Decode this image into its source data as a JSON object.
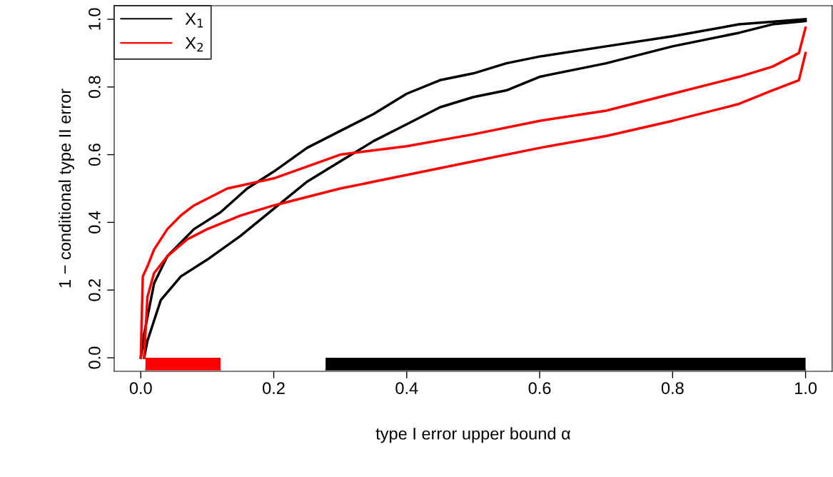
{
  "chart_data": {
    "type": "line",
    "xlabel": "type I error upper bound α",
    "ylabel": "1 − conditional type II error",
    "xlim": [
      -0.04,
      1.04
    ],
    "ylim": [
      -0.04,
      1.04
    ],
    "xticks": [
      {
        "value": 0,
        "label": "0.0"
      },
      0.2,
      0.4,
      0.6,
      0.8,
      {
        "value": 1,
        "label": "1.0"
      }
    ],
    "yticks": [
      {
        "value": 0,
        "label": "0.0"
      },
      0.2,
      0.4,
      0.6,
      0.8,
      {
        "value": 1,
        "label": "1.0"
      }
    ],
    "grid": false,
    "legend": "top left",
    "line_style": "solid",
    "marker": "none",
    "series": [
      {
        "name": "X$_{1}$",
        "color": "#000000",
        "x": [
          0,
          0.005,
          0.02,
          0.04,
          0.08,
          0.12,
          0.16,
          0.2,
          0.25,
          0.3,
          0.35,
          0.4,
          0.45,
          0.5,
          0.55,
          0.6,
          0.7,
          0.8,
          0.9,
          1.0
        ],
        "values": [
          0,
          0.07,
          0.22,
          0.3,
          0.38,
          0.43,
          0.5,
          0.55,
          0.62,
          0.67,
          0.72,
          0.78,
          0.82,
          0.84,
          0.87,
          0.89,
          0.92,
          0.95,
          0.985,
          1.0
        ]
      },
      {
        "color": "#000000",
        "x": [
          0.005,
          0.01,
          0.03,
          0.06,
          0.1,
          0.15,
          0.2,
          0.25,
          0.3,
          0.35,
          0.4,
          0.45,
          0.5,
          0.55,
          0.6,
          0.7,
          0.8,
          0.9,
          0.95,
          1.0
        ],
        "values": [
          0,
          0.05,
          0.17,
          0.24,
          0.29,
          0.36,
          0.44,
          0.52,
          0.58,
          0.64,
          0.69,
          0.74,
          0.77,
          0.79,
          0.83,
          0.87,
          0.92,
          0.96,
          0.985,
          0.995
        ]
      },
      {
        "name": "X$_{2}$",
        "color": "#ff0000",
        "x": [
          0,
          0.003,
          0.01,
          0.02,
          0.04,
          0.06,
          0.08,
          0.1,
          0.13,
          0.2,
          0.3,
          0.4,
          0.5,
          0.6,
          0.7,
          0.8,
          0.9,
          0.95,
          0.99,
          1.0
        ],
        "values": [
          0,
          0.24,
          0.27,
          0.32,
          0.38,
          0.42,
          0.45,
          0.47,
          0.5,
          0.53,
          0.6,
          0.625,
          0.66,
          0.7,
          0.73,
          0.78,
          0.83,
          0.86,
          0.9,
          0.975
        ]
      },
      {
        "color": "#ff0000",
        "x": [
          0.005,
          0.01,
          0.02,
          0.04,
          0.07,
          0.1,
          0.15,
          0.2,
          0.3,
          0.4,
          0.5,
          0.6,
          0.7,
          0.8,
          0.9,
          0.95,
          0.99,
          1.0
        ],
        "values": [
          0,
          0.18,
          0.25,
          0.3,
          0.35,
          0.38,
          0.42,
          0.45,
          0.5,
          0.54,
          0.58,
          0.62,
          0.655,
          0.7,
          0.75,
          0.79,
          0.82,
          0.9
        ]
      },
      {
        "type": "area",
        "color": "#ff0000",
        "x": [
          0.007,
          0.12
        ],
        "values": [
          -0.036,
          -0.036
        ]
      },
      {
        "type": "area",
        "color": "#000000",
        "x": [
          0.278,
          1.0
        ],
        "values": [
          -0.036,
          -0.036
        ]
      }
    ]
  }
}
